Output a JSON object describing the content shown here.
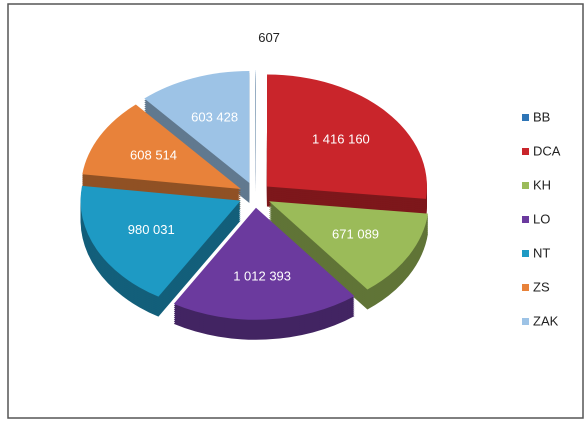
{
  "chart_data": {
    "type": "pie",
    "categories": [
      "BB",
      "DCA",
      "KH",
      "LO",
      "NT",
      "ZS",
      "ZAK"
    ],
    "values": [
      607,
      1416160,
      671089,
      1012393,
      980031,
      608514,
      603428
    ],
    "value_labels": [
      "607",
      "1 416 160",
      "671 089",
      "1 012 393",
      "980 031",
      "608 514",
      "603 428"
    ],
    "colors": [
      "#2e75b6",
      "#c9252b",
      "#9bbb59",
      "#6b3a9e",
      "#1e9ac4",
      "#e8823a",
      "#9dc3e6"
    ],
    "legend": "right"
  }
}
